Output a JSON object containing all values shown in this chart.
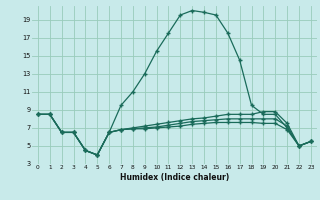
{
  "xlabel": "Humidex (Indice chaleur)",
  "bg_color": "#c8eaea",
  "grid_color": "#99ccbb",
  "line_color": "#1a6b5a",
  "xlim_min": -0.5,
  "xlim_max": 23.5,
  "ylim_min": 3,
  "ylim_max": 20.5,
  "yticks": [
    3,
    5,
    7,
    9,
    11,
    13,
    15,
    17,
    19
  ],
  "xticks": [
    0,
    1,
    2,
    3,
    4,
    5,
    6,
    7,
    8,
    9,
    10,
    11,
    12,
    13,
    14,
    15,
    16,
    17,
    18,
    19,
    20,
    21,
    22,
    23
  ],
  "line1_x": [
    0,
    1,
    2,
    3,
    4,
    5,
    6,
    7,
    8,
    9,
    10,
    11,
    12,
    13,
    14,
    15,
    16,
    17,
    18,
    19,
    20,
    21,
    22,
    23
  ],
  "line1_y": [
    8.5,
    8.5,
    6.5,
    6.5,
    4.5,
    4.0,
    6.5,
    9.5,
    11.0,
    13.0,
    15.5,
    17.5,
    19.5,
    20.0,
    19.8,
    19.5,
    17.5,
    14.5,
    9.5,
    8.5,
    8.5,
    7.0,
    5.0,
    5.5
  ],
  "line2_x": [
    0,
    1,
    2,
    3,
    4,
    5,
    6,
    7,
    8,
    9,
    10,
    11,
    12,
    13,
    14,
    15,
    16,
    17,
    18,
    19,
    20,
    21,
    22,
    23
  ],
  "line2_y": [
    8.5,
    8.5,
    6.5,
    6.5,
    4.5,
    4.0,
    6.5,
    6.8,
    7.0,
    7.2,
    7.4,
    7.6,
    7.8,
    8.0,
    8.1,
    8.3,
    8.5,
    8.5,
    8.5,
    8.8,
    8.8,
    7.5,
    5.0,
    5.5
  ],
  "line3_x": [
    0,
    1,
    2,
    3,
    4,
    5,
    6,
    7,
    8,
    9,
    10,
    11,
    12,
    13,
    14,
    15,
    16,
    17,
    18,
    19,
    20,
    21,
    22,
    23
  ],
  "line3_y": [
    8.5,
    8.5,
    6.5,
    6.5,
    4.5,
    4.0,
    6.5,
    6.8,
    6.9,
    7.0,
    7.1,
    7.3,
    7.5,
    7.7,
    7.8,
    7.9,
    8.0,
    8.0,
    8.0,
    8.0,
    8.0,
    7.2,
    5.0,
    5.5
  ],
  "line4_x": [
    0,
    1,
    2,
    3,
    4,
    5,
    6,
    7,
    8,
    9,
    10,
    11,
    12,
    13,
    14,
    15,
    16,
    17,
    18,
    19,
    20,
    21,
    22,
    23
  ],
  "line4_y": [
    8.5,
    8.5,
    6.5,
    6.5,
    4.5,
    4.0,
    6.5,
    6.8,
    6.9,
    6.9,
    7.0,
    7.1,
    7.2,
    7.4,
    7.5,
    7.6,
    7.6,
    7.6,
    7.6,
    7.5,
    7.5,
    6.8,
    5.0,
    5.5
  ]
}
